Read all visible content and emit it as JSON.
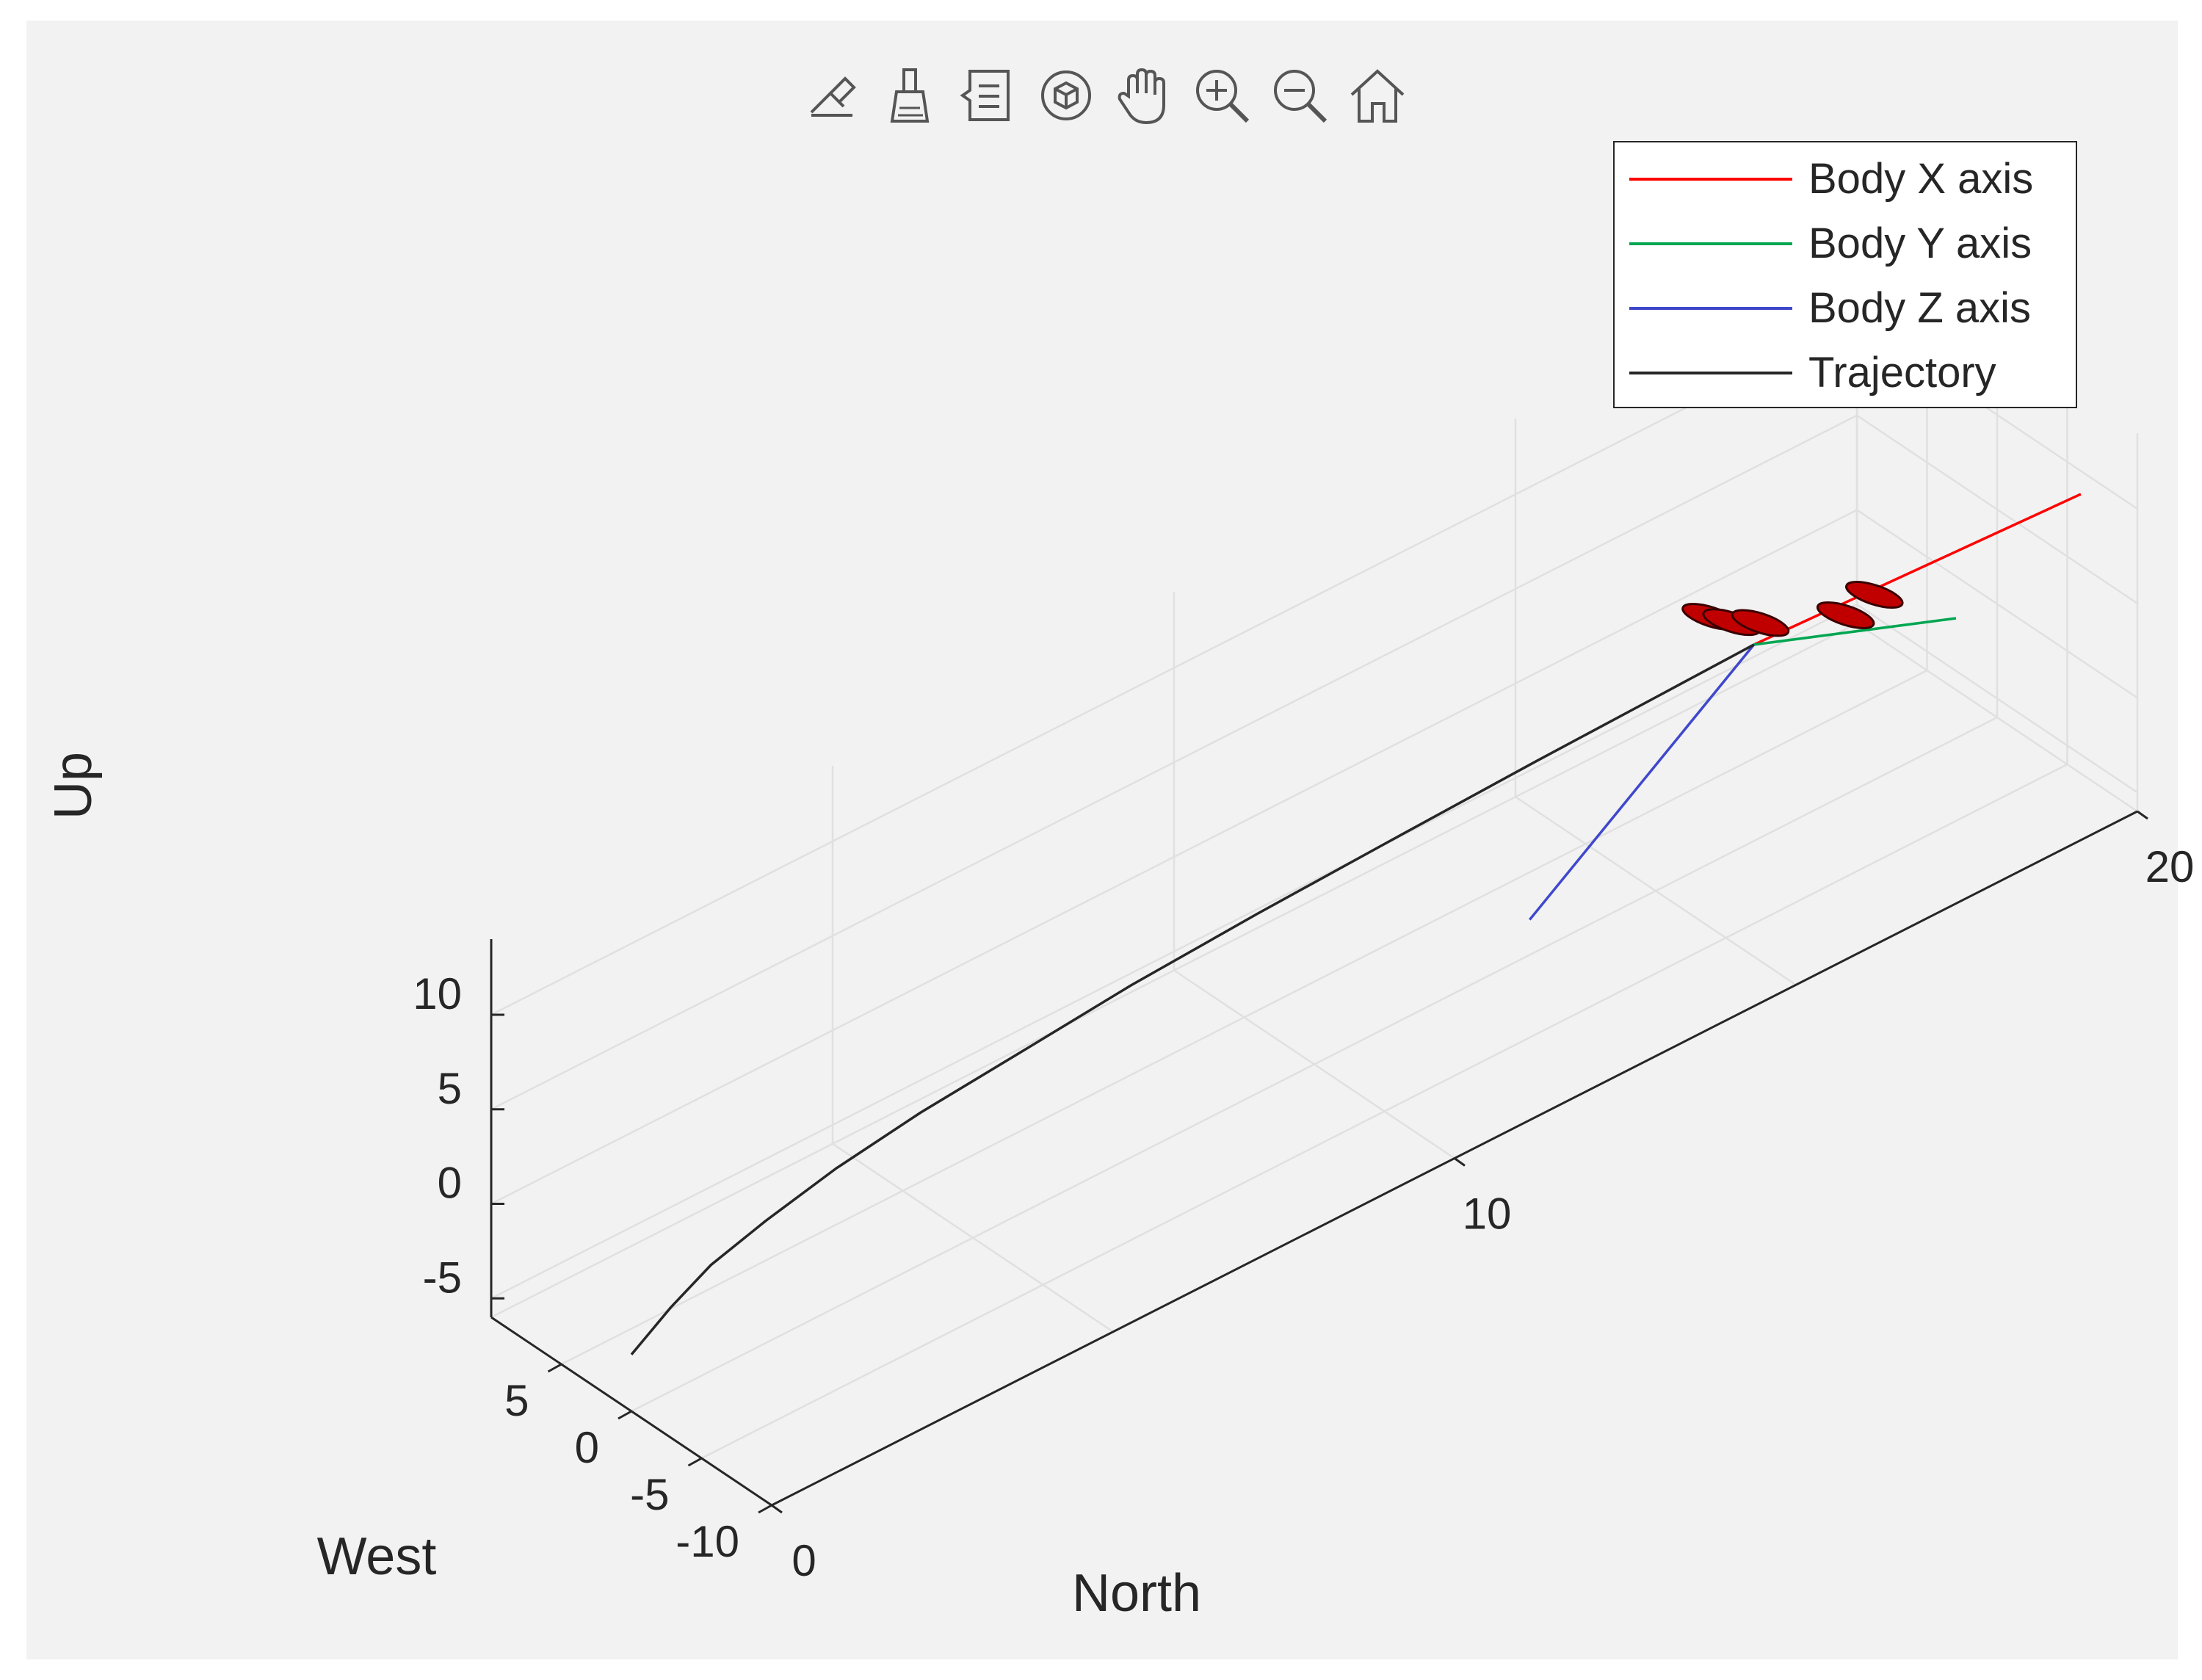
{
  "toolbar": {
    "buttons": [
      {
        "name": "edit-brush-icon",
        "tooltip": "Edit"
      },
      {
        "name": "brush-icon",
        "tooltip": "Brush"
      },
      {
        "name": "datatip-icon",
        "tooltip": "Data Tips"
      },
      {
        "name": "rotate-3d-icon",
        "tooltip": "Rotate 3D"
      },
      {
        "name": "pan-hand-icon",
        "tooltip": "Pan"
      },
      {
        "name": "zoom-in-icon",
        "tooltip": "Zoom In"
      },
      {
        "name": "zoom-out-icon",
        "tooltip": "Zoom Out"
      },
      {
        "name": "home-icon",
        "tooltip": "Restore View"
      }
    ]
  },
  "chart_data": {
    "type": "line",
    "projection": "3d",
    "xlabel": "North",
    "ylabel": "West",
    "zlabel": "Up",
    "xlim": [
      0,
      20
    ],
    "ylim": [
      -10,
      10
    ],
    "zlim": [
      -6,
      14
    ],
    "xticks": [
      0,
      10,
      20
    ],
    "yticks": [
      -10,
      -5,
      0,
      5
    ],
    "zticks": [
      -5,
      0,
      5,
      10
    ],
    "grid": true,
    "legend_position": "top-right",
    "colors": {
      "body_x": "#ff0000",
      "body_y": "#00a651",
      "body_z": "#3f48cc",
      "trajectory": "#262626",
      "rotor": "#c00000",
      "axes": "#262626",
      "grid": "#e0e0e0"
    },
    "series": [
      {
        "name": "Body X axis",
        "color": "#ff0000",
        "x": [
          15.0,
          19.5
        ],
        "y": [
          -7.0,
          -8.4
        ],
        "z": [
          10.5,
          10.9
        ]
      },
      {
        "name": "Body Y axis",
        "color": "#00a651",
        "x": [
          15.0,
          17.2
        ],
        "y": [
          -7.0,
          -10.7
        ],
        "z": [
          10.5,
          9.7
        ]
      },
      {
        "name": "Body Z axis",
        "color": "#3f48cc",
        "x": [
          15.0,
          11.1
        ],
        "y": [
          -7.0,
          -10.0
        ],
        "z": [
          10.5,
          4.6
        ]
      },
      {
        "name": "Trajectory",
        "color": "#262626",
        "x": [
          0.0,
          0.5,
          1.0,
          1.7,
          2.6,
          3.7,
          5.0,
          6.5,
          8.2,
          10.0,
          12.0,
          13.6,
          15.0
        ],
        "y": [
          0.0,
          -0.4,
          -0.8,
          -1.3,
          -1.9,
          -2.6,
          -3.4,
          -4.0,
          -4.7,
          -5.4,
          -6.1,
          -6.6,
          -7.0
        ],
        "z": [
          -3.0,
          -1.2,
          0.3,
          1.6,
          3.0,
          4.3,
          5.5,
          6.6,
          7.6,
          8.5,
          9.4,
          10.0,
          10.5
        ]
      }
    ],
    "rotors": [
      {
        "x": 14.8,
        "y": -4.9,
        "z": 11.3
      },
      {
        "x": 15.0,
        "y": -5.4,
        "z": 10.9
      },
      {
        "x": 15.3,
        "y": -6.0,
        "z": 10.6
      },
      {
        "x": 16.6,
        "y": -7.8,
        "z": 10.6
      },
      {
        "x": 16.2,
        "y": -7.7,
        "z": 10.2
      }
    ]
  }
}
